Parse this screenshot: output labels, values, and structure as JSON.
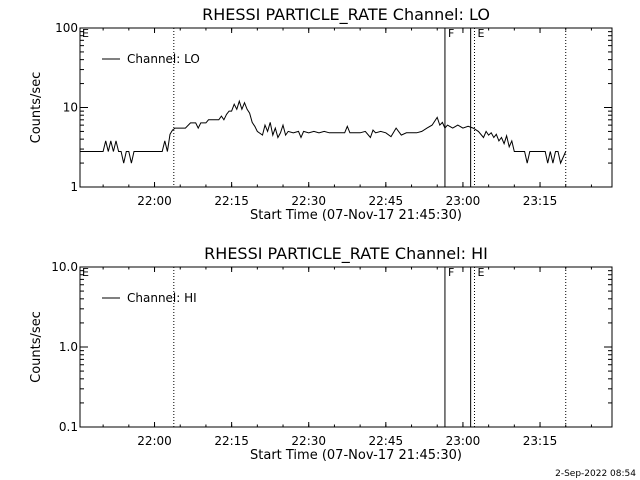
{
  "chart_data": [
    {
      "type": "line",
      "title": "RHESSI PARTICLE_RATE Channel: LO",
      "xlabel": "Start Time (07-Nov-17 21:45:30)",
      "ylabel": "Counts/sec",
      "yscale": "log",
      "ylim": [
        1,
        100
      ],
      "xlim": [
        "21:45:30",
        "23:29:00"
      ],
      "xticks": [
        "22:00",
        "22:15",
        "22:30",
        "22:45",
        "23:00",
        "23:15"
      ],
      "yticks": [
        "1",
        "10",
        "100"
      ],
      "legend": "top-left",
      "series": [
        {
          "name": "Channel: LO",
          "color": "#000000",
          "x": [
            "21:45:30",
            "21:46:00",
            "21:50:00",
            "21:50:30",
            "21:51:00",
            "21:51:30",
            "21:52:00",
            "21:52:30",
            "21:53:00",
            "21:53:30",
            "21:54:00",
            "21:54:30",
            "21:55:00",
            "21:55:30",
            "21:56:00",
            "21:56:30",
            "21:57:00",
            "22:01:30",
            "22:02:00",
            "22:02:30",
            "22:03:00",
            "22:03:30",
            "22:04:00",
            "22:05:00",
            "22:06:00",
            "22:07:00",
            "22:08:00",
            "22:08:30",
            "22:09:00",
            "22:10:00",
            "22:10:30",
            "22:11:00",
            "22:12:00",
            "22:12:30",
            "22:13:00",
            "22:13:30",
            "22:14:00",
            "22:14:30",
            "22:15:00",
            "22:15:30",
            "22:16:00",
            "22:16:30",
            "22:17:00",
            "22:17:30",
            "22:18:00",
            "22:18:30",
            "22:19:00",
            "22:19:30",
            "22:20:00",
            "22:21:00",
            "22:21:30",
            "22:22:00",
            "22:22:30",
            "22:23:00",
            "22:23:30",
            "22:24:00",
            "22:24:30",
            "22:25:00",
            "22:25:30",
            "22:26:00",
            "22:27:00",
            "22:28:00",
            "22:28:30",
            "22:29:00",
            "22:30:00",
            "22:31:00",
            "22:32:00",
            "22:33:00",
            "22:34:00",
            "22:35:00",
            "22:36:00",
            "22:37:00",
            "22:37:30",
            "22:38:00",
            "22:39:00",
            "22:40:00",
            "22:41:00",
            "22:42:00",
            "22:42:30",
            "22:43:00",
            "22:44:00",
            "22:45:00",
            "22:46:00",
            "22:47:00",
            "22:48:00",
            "22:49:00",
            "22:50:00",
            "22:51:00",
            "22:52:00",
            "22:53:00",
            "22:54:00",
            "22:55:00",
            "22:55:30",
            "22:56:00",
            "22:56:30",
            "22:57:00",
            "22:58:00",
            "22:59:00",
            "23:00:00",
            "23:01:00",
            "23:02:00",
            "23:03:00",
            "23:04:00",
            "23:04:30",
            "23:05:00",
            "23:05:30",
            "23:06:00",
            "23:06:30",
            "23:07:00",
            "23:07:30",
            "23:08:00",
            "23:08:30",
            "23:09:00",
            "23:09:30",
            "23:10:00",
            "23:11:00",
            "23:12:00",
            "23:12:30",
            "23:13:00",
            "23:14:00",
            "23:15:00",
            "23:16:00",
            "23:16:30",
            "23:17:00",
            "23:17:30",
            "23:18:00",
            "23:18:30",
            "23:19:00",
            "23:20:00"
          ],
          "y": [
            2.8,
            2.8,
            2.8,
            3.8,
            2.8,
            3.8,
            2.8,
            3.8,
            2.8,
            2.8,
            2.0,
            2.8,
            2.8,
            2.0,
            2.8,
            2.8,
            2.8,
            2.8,
            3.8,
            2.8,
            4.6,
            5.2,
            5.5,
            5.5,
            5.5,
            6.4,
            6.4,
            5.5,
            6.4,
            6.4,
            7.0,
            7.0,
            7.0,
            7.0,
            7.8,
            7.0,
            8.2,
            9.0,
            9.0,
            11.0,
            9.5,
            12.0,
            9.5,
            11.5,
            9.5,
            8.5,
            6.5,
            5.8,
            5.0,
            4.5,
            6.0,
            5.0,
            6.5,
            4.5,
            5.5,
            4.2,
            4.8,
            6.0,
            4.5,
            5.0,
            4.8,
            5.0,
            4.2,
            5.0,
            4.8,
            5.0,
            4.8,
            5.0,
            4.8,
            4.8,
            4.8,
            4.8,
            5.8,
            4.8,
            4.8,
            4.8,
            5.0,
            4.2,
            5.2,
            4.8,
            5.0,
            4.8,
            4.3,
            5.5,
            4.5,
            4.8,
            4.8,
            4.8,
            5.0,
            5.5,
            6.0,
            7.5,
            6.0,
            6.5,
            5.5,
            6.0,
            5.5,
            6.0,
            5.5,
            5.8,
            5.5,
            5.0,
            4.2,
            5.0,
            4.5,
            4.8,
            4.2,
            4.6,
            3.8,
            4.2,
            3.5,
            4.4,
            3.2,
            3.8,
            2.8,
            2.8,
            2.8,
            2.0,
            2.8,
            2.8,
            2.8,
            2.8,
            2.0,
            2.8,
            2.0,
            2.8,
            2.8,
            2.0,
            2.8
          ]
        }
      ],
      "markers": [
        {
          "time": "22:03:45",
          "style": "dotted",
          "label": ""
        },
        {
          "time": "22:56:30",
          "style": "solid",
          "label": "F"
        },
        {
          "time": "23:01:30",
          "style": "solid",
          "label": ""
        },
        {
          "time": "23:02:15",
          "style": "dotted",
          "label": "E"
        },
        {
          "time": "23:20:00",
          "style": "dotted",
          "label": ""
        }
      ],
      "edge_label": "E"
    },
    {
      "type": "line",
      "title": "RHESSI PARTICLE_RATE Channel: HI",
      "xlabel": "Start Time (07-Nov-17 21:45:30)",
      "ylabel": "Counts/sec",
      "yscale": "log",
      "ylim": [
        0.1,
        10
      ],
      "xlim": [
        "21:45:30",
        "23:29:00"
      ],
      "xticks": [
        "22:00",
        "22:15",
        "22:30",
        "22:45",
        "23:00",
        "23:15"
      ],
      "yticks": [
        "0.1",
        "1.0",
        "10.0"
      ],
      "legend": "top-left",
      "series": [
        {
          "name": "Channel: HI",
          "color": "#000000",
          "x": [],
          "y": []
        }
      ],
      "markers": [
        {
          "time": "22:03:45",
          "style": "dotted",
          "label": ""
        },
        {
          "time": "22:56:30",
          "style": "solid",
          "label": "F"
        },
        {
          "time": "23:01:30",
          "style": "solid",
          "label": ""
        },
        {
          "time": "23:02:15",
          "style": "dotted",
          "label": "E"
        },
        {
          "time": "23:20:00",
          "style": "dotted",
          "label": ""
        }
      ],
      "edge_label": "E"
    }
  ],
  "footer": {
    "timestamp": "2-Sep-2022 08:54"
  }
}
